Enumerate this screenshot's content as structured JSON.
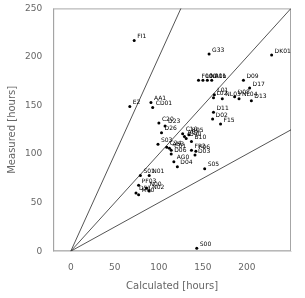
{
  "chart_data": {
    "type": "scatter",
    "xlabel": "Calculated [hours]",
    "ylabel": "Measured [hours]",
    "xlim": [
      -20,
      250
    ],
    "ylim": [
      0,
      250
    ],
    "xticks": [
      0,
      50,
      100,
      150,
      200
    ],
    "yticks": [
      0,
      50,
      100,
      150,
      200,
      250
    ],
    "grid": false,
    "color": "#000000",
    "x": [
      72,
      67,
      157,
      228,
      196,
      203,
      186,
      191,
      205,
      145,
      150,
      155,
      160,
      163,
      162,
      172,
      162,
      161,
      91,
      93,
      170,
      100,
      107,
      103,
      127,
      134,
      129,
      131,
      137,
      99,
      109,
      112,
      114,
      114,
      137,
      142,
      141,
      117,
      121,
      152,
      79,
      89,
      77,
      86,
      89,
      74,
      77,
      143
    ],
    "values": [
      217,
      149,
      203,
      202,
      176,
      168,
      159,
      157,
      155,
      176,
      176,
      176,
      176,
      161,
      158,
      157,
      143,
      136,
      153,
      148,
      131,
      132,
      129,
      122,
      121,
      120,
      118,
      116,
      113,
      110,
      107,
      106,
      104,
      100,
      104,
      103,
      99,
      92,
      87,
      85,
      78,
      78,
      68,
      65,
      62,
      60,
      58,
      3
    ],
    "annotations": [
      "FI1",
      "E2",
      "G33",
      "DK01",
      "D09",
      "D17",
      "D08",
      "NL04",
      "D13",
      "F00",
      "L00",
      "N01b",
      "A01",
      "L01",
      "L02",
      "NL03",
      "D11",
      "D02",
      "AA1",
      "CD01",
      "F15",
      "C20",
      "D23",
      "D26",
      "C10",
      "B05",
      "A07",
      "D40",
      "B10",
      "S03",
      "C24",
      "A53",
      "C01",
      "D06",
      "FR2",
      "F06",
      "D03",
      "AG0",
      "D04",
      "S05",
      "S01",
      "N01",
      "PF03",
      "N00",
      "N02",
      "D51",
      "M60",
      "S00"
    ],
    "reference_lines": {
      "slopes": [
        1.0,
        2.0,
        0.5
      ],
      "color": "#555555"
    }
  }
}
